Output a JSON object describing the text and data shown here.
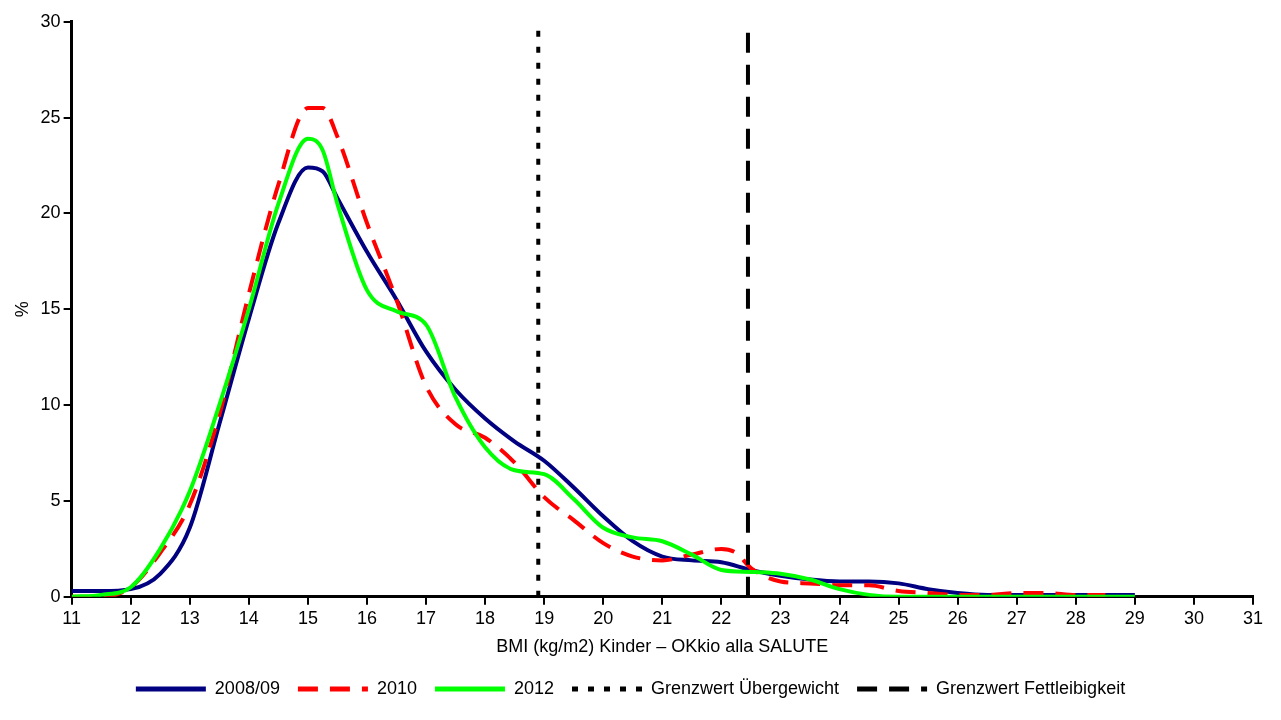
{
  "chart_data": {
    "type": "line",
    "xlabel": "BMI (kg/m2) Kinder – OKkio alla SALUTE",
    "ylabel": "%",
    "xlim": [
      11,
      31
    ],
    "xticks": [
      11,
      12,
      13,
      14,
      15,
      16,
      17,
      18,
      19,
      20,
      21,
      22,
      23,
      24,
      25,
      26,
      27,
      28,
      29,
      30,
      31
    ],
    "ylim": [
      0,
      30
    ],
    "yticks": [
      0,
      5,
      10,
      15,
      20,
      25,
      30
    ],
    "grid": false,
    "legend": "bottom",
    "marker": "none",
    "series": [
      {
        "name": "2008/09",
        "color": "#000080",
        "line_style": "solid",
        "x": [
          11,
          11.5,
          12,
          12.5,
          13,
          13.5,
          14,
          14.5,
          15,
          15.25,
          15.5,
          16,
          16.5,
          17,
          17.5,
          18,
          18.5,
          19,
          19.5,
          20,
          20.5,
          21,
          21.5,
          22,
          22.5,
          23,
          23.5,
          24,
          24.5,
          25,
          25.5,
          26,
          26.5,
          27,
          28,
          29
        ],
        "values": [
          0.3,
          0.3,
          0.4,
          1.2,
          3.6,
          9,
          14.5,
          19.5,
          22.4,
          22.2,
          20.8,
          18,
          15.5,
          12.8,
          10.8,
          9.3,
          8.1,
          7.1,
          5.7,
          4.2,
          2.9,
          2.1,
          1.9,
          1.8,
          1.4,
          1.1,
          0.9,
          0.8,
          0.8,
          0.7,
          0.4,
          0.2,
          0.1,
          0.1,
          0.1,
          0.1
        ]
      },
      {
        "name": "2010",
        "color": "#ff0000",
        "line_style": "dashed",
        "x": [
          11,
          11.5,
          12,
          12.5,
          13,
          13.5,
          14,
          14.5,
          15,
          15.25,
          15.5,
          16,
          16.5,
          17,
          17.5,
          18,
          18.5,
          19,
          19.5,
          20,
          20.5,
          21,
          21.5,
          22,
          22.25,
          22.5,
          23,
          23.5,
          24,
          24.5,
          25,
          25.5,
          26,
          26.5,
          27,
          27.5,
          28,
          28.5
        ],
        "values": [
          0,
          0,
          0.5,
          2.3,
          4.8,
          9.5,
          15.8,
          21.5,
          25.5,
          25.5,
          24,
          19.5,
          15.5,
          11,
          9,
          8.3,
          7,
          5.2,
          4,
          2.8,
          2.1,
          1.9,
          2.2,
          2.5,
          2.3,
          1.5,
          0.8,
          0.7,
          0.6,
          0.6,
          0.3,
          0.2,
          0.1,
          0.1,
          0.2,
          0.2,
          0.1,
          0.1
        ]
      },
      {
        "name": "2012",
        "color": "#00ff00",
        "line_style": "solid",
        "x": [
          11,
          11.5,
          12,
          12.5,
          13,
          13.5,
          14,
          14.5,
          15,
          15.25,
          15.5,
          16,
          16.5,
          17,
          17.5,
          18,
          18.5,
          19,
          19.5,
          20,
          20.5,
          21,
          21.5,
          22,
          22.5,
          23,
          23.5,
          24,
          24.5,
          25,
          26,
          27,
          28,
          29
        ],
        "values": [
          0,
          0.1,
          0.5,
          2.5,
          5.5,
          10,
          15,
          20.5,
          23.9,
          23.3,
          20.5,
          16,
          14.9,
          14.2,
          10.4,
          7.8,
          6.6,
          6.4,
          5.1,
          3.6,
          3.1,
          2.9,
          2.2,
          1.4,
          1.3,
          1.2,
          0.9,
          0.4,
          0.1,
          0,
          0,
          0,
          0,
          0
        ]
      }
    ],
    "ref_lines": [
      {
        "axis": "x",
        "value": 18.9,
        "label": "Grenzwert Übergewicht",
        "color": "#000000",
        "line_style": "dotted"
      },
      {
        "axis": "x",
        "value": 22.45,
        "label": "Grenzwert Fettleibigkeit",
        "color": "#000000",
        "line_style": "dashed"
      }
    ]
  }
}
